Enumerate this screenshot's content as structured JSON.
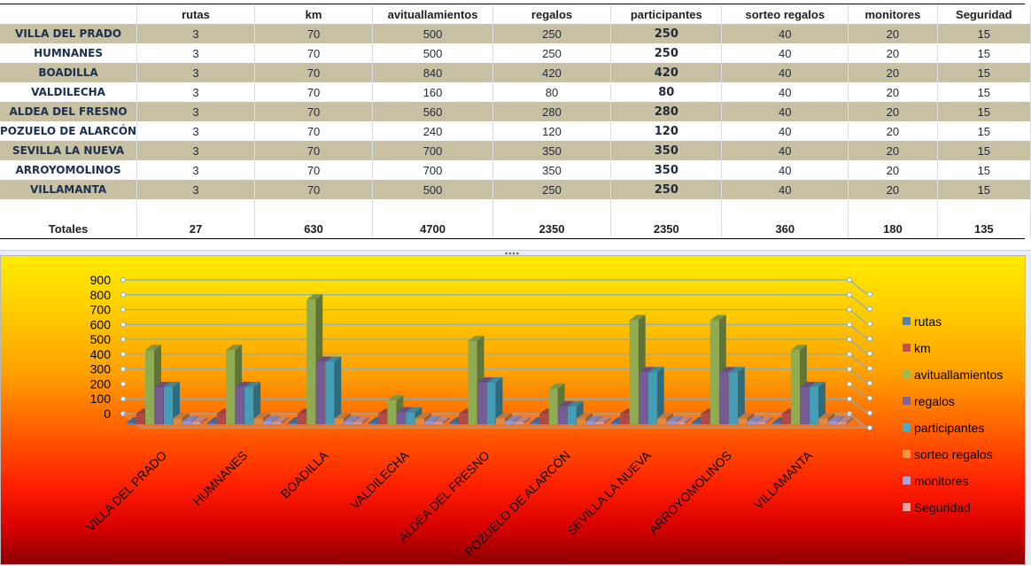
{
  "table": {
    "headers": [
      "",
      "rutas",
      "km",
      "avituallamientos",
      "regalos",
      "participantes",
      "sorteo regalos",
      "monitores",
      "Seguridad"
    ],
    "rows": [
      {
        "name": "VILLA DEL PRADO",
        "rutas": "3",
        "km": "70",
        "avit": "500",
        "regalos": "250",
        "part": "250",
        "sorteo": "40",
        "monitores": "20",
        "seg": "15"
      },
      {
        "name": "HUMNANES",
        "rutas": "3",
        "km": "70",
        "avit": "500",
        "regalos": "250",
        "part": "250",
        "sorteo": "40",
        "monitores": "20",
        "seg": "15"
      },
      {
        "name": "BOADILLA",
        "rutas": "3",
        "km": "70",
        "avit": "840",
        "regalos": "420",
        "part": "420",
        "sorteo": "40",
        "monitores": "20",
        "seg": "15"
      },
      {
        "name": "VALDILECHA",
        "rutas": "3",
        "km": "70",
        "avit": "160",
        "regalos": "80",
        "part": "80",
        "sorteo": "40",
        "monitores": "20",
        "seg": "15"
      },
      {
        "name": "ALDEA DEL FRESNO",
        "rutas": "3",
        "km": "70",
        "avit": "560",
        "regalos": "280",
        "part": "280",
        "sorteo": "40",
        "monitores": "20",
        "seg": "15"
      },
      {
        "name": "POZUELO DE ALARCÓN",
        "rutas": "3",
        "km": "70",
        "avit": "240",
        "regalos": "120",
        "part": "120",
        "sorteo": "40",
        "monitores": "20",
        "seg": "15"
      },
      {
        "name": "SEVILLA LA NUEVA",
        "rutas": "3",
        "km": "70",
        "avit": "700",
        "regalos": "350",
        "part": "350",
        "sorteo": "40",
        "monitores": "20",
        "seg": "15"
      },
      {
        "name": "ARROYOMOLINOS",
        "rutas": "3",
        "km": "70",
        "avit": "700",
        "regalos": "350",
        "part": "350",
        "sorteo": "40",
        "monitores": "20",
        "seg": "15"
      },
      {
        "name": "VILLAMANTA",
        "rutas": "3",
        "km": "70",
        "avit": "500",
        "regalos": "250",
        "part": "250",
        "sorteo": "40",
        "monitores": "20",
        "seg": "15"
      }
    ],
    "totals": {
      "label": "Totales",
      "rutas": "27",
      "km": "630",
      "avit": "4700",
      "regalos": "2350",
      "part": "2350",
      "sorteo": "360",
      "monitores": "180",
      "seg": "135"
    }
  },
  "splitter_grip": "▪▪▪▪",
  "chart_data": {
    "type": "bar",
    "style": "3d-clustered-column",
    "categories": [
      "VILLA DEL PRADO",
      "HUMNANES",
      "BOADILLA",
      "VALDILECHA",
      "ALDEA DEL FRESNO",
      "POZUELO DE ALARCÓN",
      "SEVILLA LA NUEVA",
      "ARROYOMOLINOS",
      "VILLAMANTA"
    ],
    "series": [
      {
        "name": "rutas",
        "color": "#4f81bd",
        "values": [
          3,
          3,
          3,
          3,
          3,
          3,
          3,
          3,
          3
        ]
      },
      {
        "name": "km",
        "color": "#c0504d",
        "values": [
          70,
          70,
          70,
          70,
          70,
          70,
          70,
          70,
          70
        ]
      },
      {
        "name": "avituallamientos",
        "color": "#9bbb59",
        "values": [
          500,
          500,
          840,
          160,
          560,
          240,
          700,
          700,
          500
        ]
      },
      {
        "name": "regalos",
        "color": "#8064a2",
        "values": [
          250,
          250,
          420,
          80,
          280,
          120,
          350,
          350,
          250
        ]
      },
      {
        "name": "participantes",
        "color": "#4bacc6",
        "values": [
          250,
          250,
          420,
          80,
          280,
          120,
          350,
          350,
          250
        ]
      },
      {
        "name": "sorteo regalos",
        "color": "#f79646",
        "values": [
          40,
          40,
          40,
          40,
          40,
          40,
          40,
          40,
          40
        ]
      },
      {
        "name": "monitores",
        "color": "#a5a5e6",
        "values": [
          20,
          20,
          20,
          20,
          20,
          20,
          20,
          20,
          20
        ]
      },
      {
        "name": "Seguridad",
        "color": "#e6a5a5",
        "values": [
          15,
          15,
          15,
          15,
          15,
          15,
          15,
          15,
          15
        ]
      }
    ],
    "y_ticks": [
      "0",
      "100",
      "200",
      "300",
      "400",
      "500",
      "600",
      "700",
      "800",
      "900"
    ],
    "ylim": [
      0,
      900
    ],
    "grid": true,
    "legend": "right",
    "background": "yellow-to-red gradient"
  }
}
